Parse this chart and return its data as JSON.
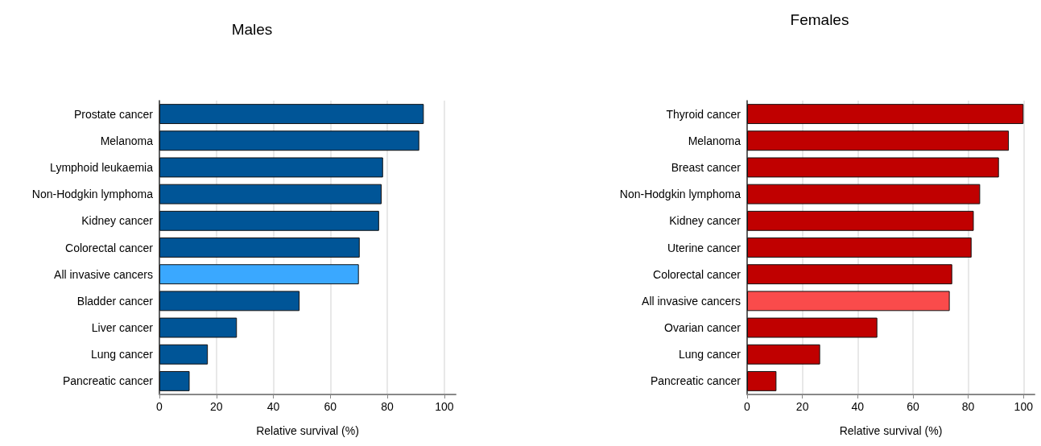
{
  "chart_data": [
    {
      "type": "bar",
      "orientation": "horizontal",
      "title": "Males",
      "xlabel": "Relative survival (%)",
      "categories": [
        "Prostate cancer",
        "Melanoma",
        "Lymphoid leukaemia",
        "Non-Hodgkin lymphoma",
        "Kidney cancer",
        "Colorectal cancer",
        "All invasive cancers",
        "Bladder cancer",
        "Liver cancer",
        "Lung cancer",
        "Pancreatic cancer"
      ],
      "values": [
        92.8,
        91.2,
        78.5,
        78.0,
        77.1,
        70.3,
        70.0,
        49.2,
        27.2,
        17.0,
        10.6
      ],
      "colors": [
        "#005597",
        "#005597",
        "#005597",
        "#005597",
        "#005597",
        "#005597",
        "#3aa8ff",
        "#005597",
        "#005597",
        "#005597",
        "#005597"
      ],
      "xlim": [
        0,
        104
      ],
      "xticks": [
        0,
        20,
        40,
        60,
        80,
        100
      ],
      "grid": "x"
    },
    {
      "type": "bar",
      "orientation": "horizontal",
      "title": "Females",
      "xlabel": "Relative survival (%)",
      "categories": [
        "Thyroid cancer",
        "Melanoma",
        "Breast cancer",
        "Non-Hodgkin lymphoma",
        "Kidney cancer",
        "Uterine cancer",
        "Colorectal cancer",
        "All invasive cancers",
        "Ovarian cancer",
        "Lung cancer",
        "Pancreatic cancer"
      ],
      "values": [
        100,
        94.7,
        91.1,
        84.3,
        82.0,
        81.2,
        74.2,
        73.3,
        47.1,
        26.4,
        10.6
      ],
      "colors": [
        "#c00000",
        "#c00000",
        "#c00000",
        "#c00000",
        "#c00000",
        "#c00000",
        "#c00000",
        "#fa4b4b",
        "#c00000",
        "#c00000",
        "#c00000"
      ],
      "xlim": [
        0,
        104
      ],
      "xticks": [
        0,
        20,
        40,
        60,
        80,
        100
      ],
      "grid": "x"
    }
  ]
}
